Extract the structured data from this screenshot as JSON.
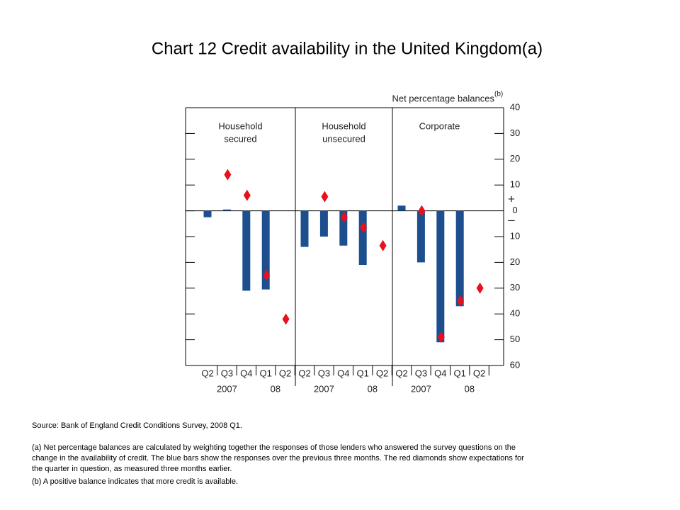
{
  "chart_data": {
    "type": "bar",
    "title": "Chart 12  Credit availability in the United Kingdom(a)",
    "y_axis_label": "Net percentage balances",
    "y_axis_label_note": "(b)",
    "positive_sign": "+",
    "negative_sign": "–",
    "categories": [
      "Q2",
      "Q3",
      "Q4",
      "Q1",
      "Q2"
    ],
    "x_groups": [
      {
        "label": "2007",
        "start": 0,
        "end": 2
      },
      {
        "label": "08",
        "start": 3,
        "end": 4
      }
    ],
    "bar_color": "#1d4f8f",
    "diamond_color": "#e8101a",
    "panels": [
      {
        "title": [
          "Household",
          "secured"
        ],
        "bars": [
          -2.5,
          0.5,
          -31,
          -30.5,
          null
        ],
        "diamonds": [
          null,
          14,
          6,
          -25,
          -42
        ]
      },
      {
        "title": [
          "Household",
          "unsecured"
        ],
        "bars": [
          -14,
          -10,
          -13.5,
          -21,
          null
        ],
        "diamonds": [
          null,
          5.5,
          -2.5,
          -6.5,
          -13.5
        ]
      },
      {
        "title": [
          "Corporate"
        ],
        "bars": [
          2,
          -20,
          -51,
          -37,
          null
        ],
        "diamonds": [
          null,
          0,
          -49,
          -35,
          -30
        ]
      }
    ],
    "ylim": [
      -60,
      40
    ],
    "yticks": [
      40,
      30,
      20,
      10,
      0,
      {
        "value": -10,
        "label": "10"
      },
      {
        "value": -20,
        "label": "20"
      },
      {
        "value": -30,
        "label": "30"
      },
      {
        "value": -40,
        "label": "40"
      },
      {
        "value": -50,
        "label": "50"
      },
      {
        "value": -60,
        "label": "60"
      }
    ],
    "grid": false,
    "source": "Source:  Bank of England Credit Conditions Survey, 2008 Q1.",
    "notes": [
      "(a)  Net percentage balances are calculated by weighting together the responses of those lenders who answered the survey questions on the",
      "change in the availability of credit.  The blue bars show the responses over the previous three months.  The red diamonds show expectations for",
      "the quarter in question, as measured three months earlier.",
      "(b)  A positive balance indicates that more credit is available."
    ]
  }
}
